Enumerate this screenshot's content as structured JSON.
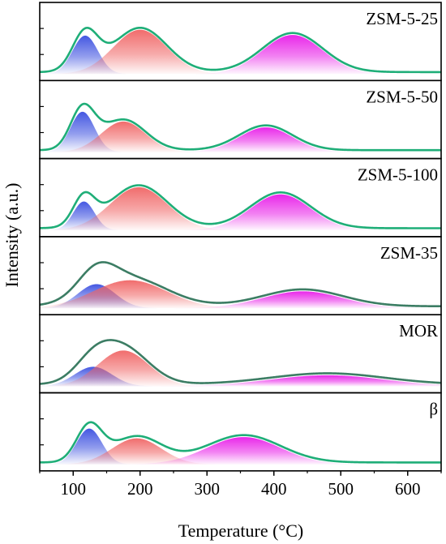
{
  "chart_data": {
    "type": "area",
    "xlabel": "Temperature (°C)",
    "ylabel": "Intensity (a.u.)",
    "xlim": [
      50,
      650
    ],
    "xticks": [
      100,
      200,
      300,
      400,
      500,
      600
    ],
    "grid": false,
    "colors": {
      "envelope_green": "#1fae78",
      "envelope_dark": "#3c7d64",
      "peak_low": "#3b4fe0",
      "peak_mid": "#f06565",
      "peak_high": "#e81ce8"
    },
    "panels": [
      {
        "label": "ZSM-5-25",
        "envelope_color": "#1fae78",
        "baseline": 0.03,
        "peaks": [
          {
            "center": 118,
            "height": 0.59,
            "width": 19
          },
          {
            "center": 200,
            "height": 0.68,
            "width": 40
          },
          {
            "center": 428,
            "height": 0.6,
            "width": 45
          }
        ]
      },
      {
        "label": "ZSM-5-50",
        "envelope_color": "#1fae78",
        "baseline": 0.03,
        "peaks": [
          {
            "center": 114,
            "height": 0.62,
            "width": 18
          },
          {
            "center": 175,
            "height": 0.47,
            "width": 33
          },
          {
            "center": 388,
            "height": 0.38,
            "width": 40
          }
        ]
      },
      {
        "label": "ZSM-5-100",
        "envelope_color": "#1fae78",
        "baseline": 0.03,
        "peaks": [
          {
            "center": 116,
            "height": 0.44,
            "width": 16
          },
          {
            "center": 198,
            "height": 0.66,
            "width": 43
          },
          {
            "center": 410,
            "height": 0.55,
            "width": 45
          }
        ]
      },
      {
        "label": "ZSM-35",
        "envelope_color": "#3c7d64",
        "baseline": 0.03,
        "peaks": [
          {
            "center": 135,
            "height": 0.37,
            "width": 28
          },
          {
            "center": 185,
            "height": 0.43,
            "width": 55
          },
          {
            "center": 443,
            "height": 0.26,
            "width": 60
          }
        ]
      },
      {
        "label": "MOR",
        "envelope_color": "#3c7d64",
        "baseline": 0.03,
        "peaks": [
          {
            "center": 130,
            "height": 0.3,
            "width": 28
          },
          {
            "center": 175,
            "height": 0.55,
            "width": 38
          },
          {
            "center": 480,
            "height": 0.17,
            "width": 85
          }
        ]
      },
      {
        "label": "β",
        "envelope_color": "#1fae78",
        "baseline": 0.03,
        "peaks": [
          {
            "center": 124,
            "height": 0.55,
            "width": 19
          },
          {
            "center": 195,
            "height": 0.4,
            "width": 37
          },
          {
            "center": 355,
            "height": 0.42,
            "width": 55
          }
        ]
      }
    ]
  }
}
